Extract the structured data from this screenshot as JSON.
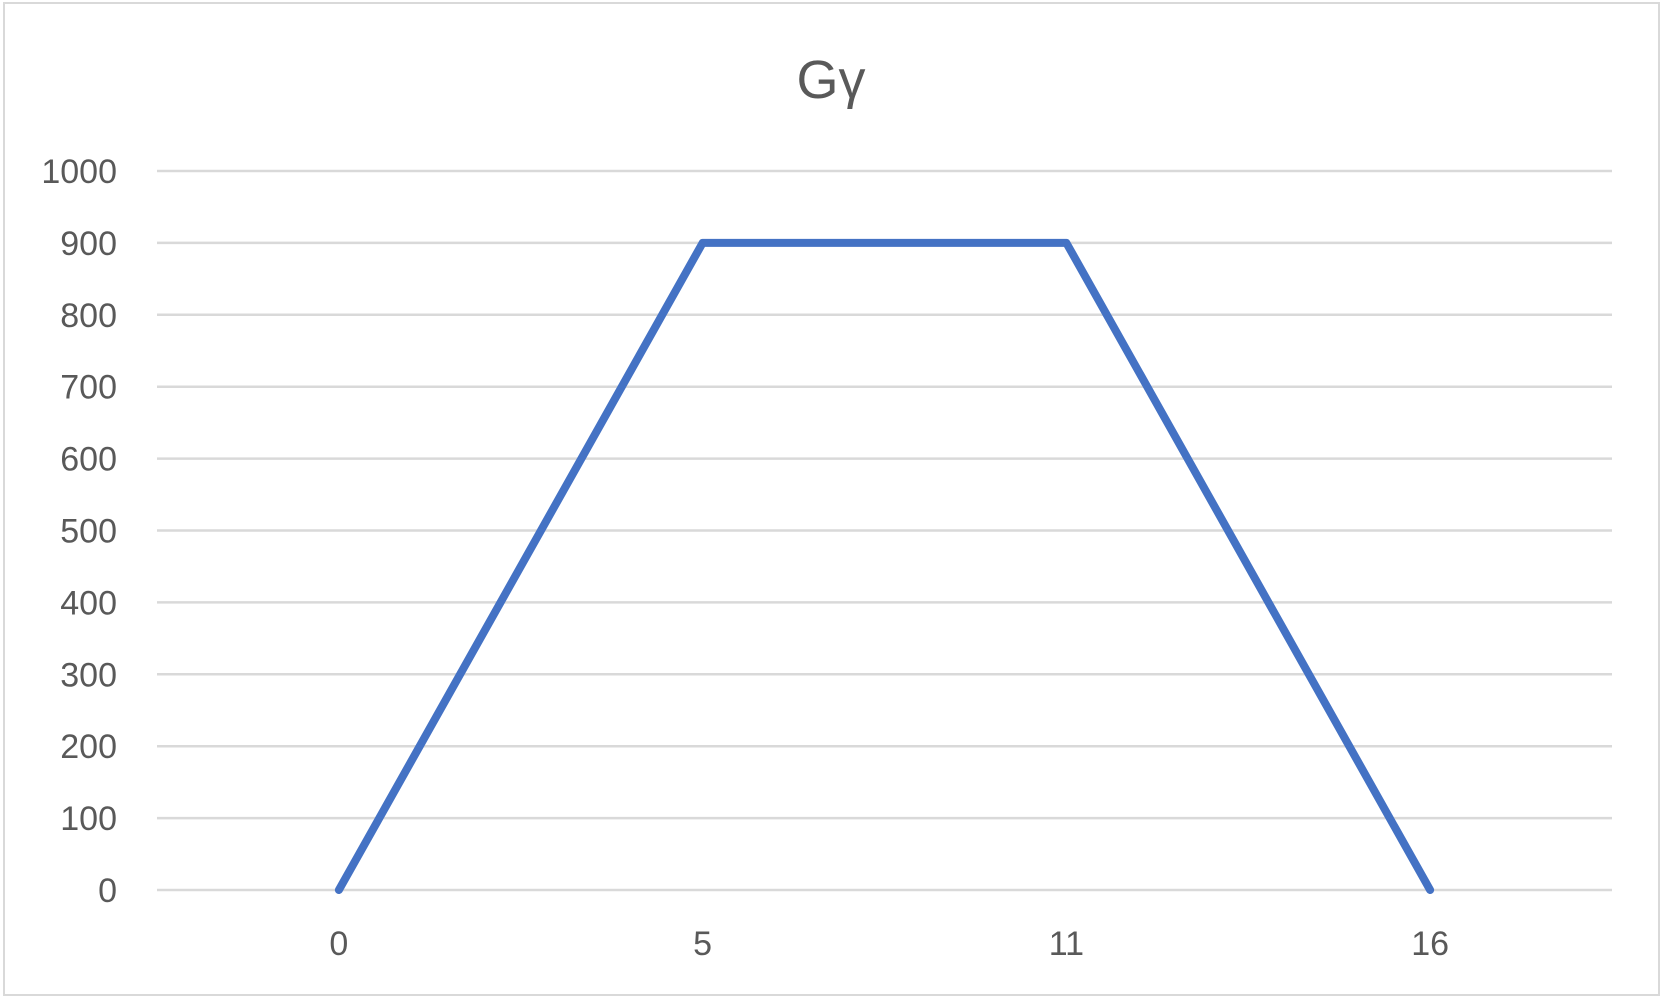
{
  "chart_data": {
    "type": "line",
    "title": "Gγ",
    "xlabel": "",
    "ylabel": "",
    "categories": [
      "0",
      "5",
      "11",
      "16"
    ],
    "series": [
      {
        "values": [
          0,
          900,
          900,
          0
        ],
        "color": "#4472C4"
      }
    ],
    "ylim": [
      0,
      1000
    ],
    "yticks": [
      0,
      100,
      200,
      300,
      400,
      500,
      600,
      700,
      800,
      900,
      1000
    ],
    "grid": true,
    "legend": "none",
    "colors": {
      "line": "#4472C4",
      "grid": "#D9D9D9",
      "border": "#D9D9D9",
      "text": "#595959"
    }
  }
}
